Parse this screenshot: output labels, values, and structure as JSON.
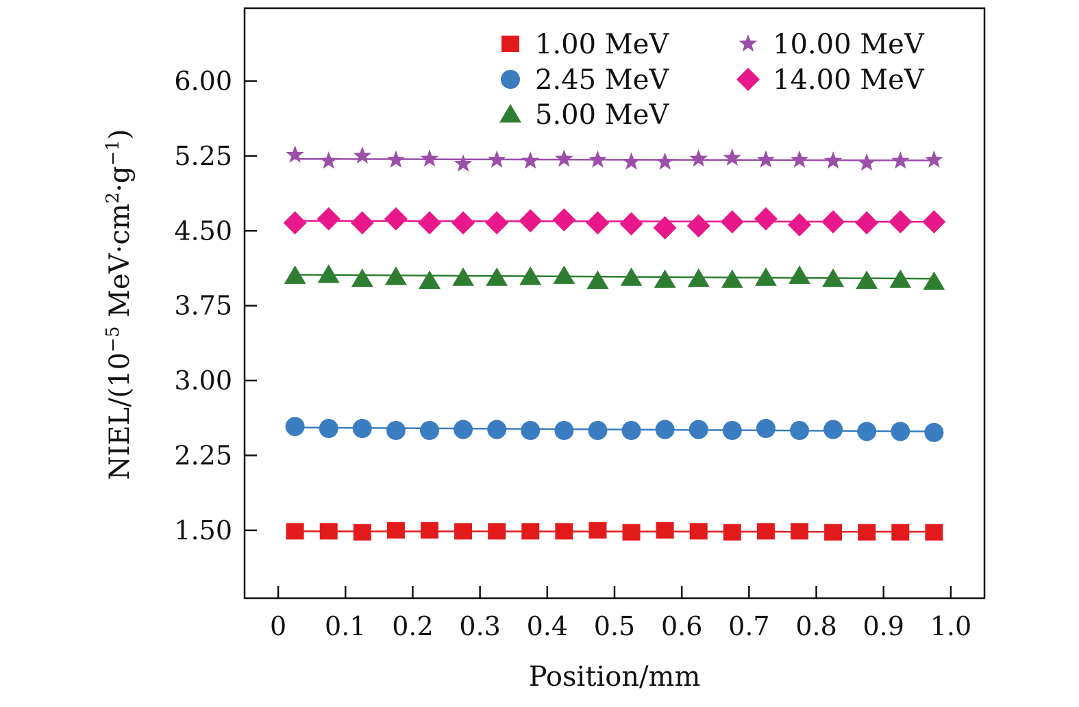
{
  "chart_data": {
    "type": "line",
    "xlabel": "Position/mm",
    "ylabel": {
      "base": "NIEL/(10",
      "exp1": "−5",
      "mid": " MeV·cm",
      "exp2": "2",
      "mid2": "·g",
      "exp3": "−1",
      "end": ")"
    },
    "xlim": [
      -0.05,
      1.05
    ],
    "ylim": [
      0.82,
      6.73
    ],
    "x_ticks": [
      0,
      0.1,
      0.2,
      0.3,
      0.4,
      0.5,
      0.6,
      0.7,
      0.8,
      0.9,
      1.0
    ],
    "x_tick_labels": [
      "0",
      "0.1",
      "0.2",
      "0.3",
      "0.4",
      "0.5",
      "0.6",
      "0.7",
      "0.8",
      "0.9",
      "1.0"
    ],
    "y_ticks": [
      1.5,
      2.25,
      3.0,
      3.75,
      4.5,
      5.25,
      6.0
    ],
    "y_tick_labels": [
      "1.50",
      "2.25",
      "3.00",
      "3.75",
      "4.50",
      "5.25",
      "6.00"
    ],
    "legend_position": "top-right",
    "x": [
      0.025,
      0.075,
      0.125,
      0.175,
      0.225,
      0.275,
      0.325,
      0.375,
      0.425,
      0.475,
      0.525,
      0.575,
      0.625,
      0.675,
      0.725,
      0.775,
      0.825,
      0.875,
      0.925,
      0.975
    ],
    "series": [
      {
        "name": "1.00 MeV",
        "marker": "square",
        "color": "#e31a1c",
        "values": [
          1.49,
          1.49,
          1.48,
          1.5,
          1.5,
          1.49,
          1.49,
          1.49,
          1.49,
          1.5,
          1.48,
          1.5,
          1.49,
          1.48,
          1.49,
          1.49,
          1.48,
          1.48,
          1.48,
          1.48
        ],
        "fit": [
          1.49,
          1.485
        ]
      },
      {
        "name": "2.45 MeV",
        "marker": "circle",
        "color": "#3a7dc0",
        "values": [
          2.54,
          2.52,
          2.52,
          2.5,
          2.5,
          2.51,
          2.51,
          2.5,
          2.5,
          2.5,
          2.5,
          2.51,
          2.51,
          2.5,
          2.52,
          2.5,
          2.51,
          2.49,
          2.49,
          2.48
        ],
        "fit": [
          2.53,
          2.49
        ]
      },
      {
        "name": "5.00 MeV",
        "marker": "triangle",
        "color": "#2e7d32",
        "values": [
          4.05,
          4.06,
          4.02,
          4.04,
          4.0,
          4.03,
          4.03,
          4.04,
          4.05,
          4.0,
          4.03,
          4.01,
          4.02,
          4.01,
          4.03,
          4.05,
          4.02,
          4.0,
          4.01,
          3.99
        ],
        "fit": [
          4.06,
          4.02
        ]
      },
      {
        "name": "10.00 MeV",
        "marker": "star",
        "color": "#9b4fa9",
        "values": [
          5.26,
          5.2,
          5.25,
          5.21,
          5.22,
          5.17,
          5.21,
          5.2,
          5.22,
          5.21,
          5.19,
          5.19,
          5.22,
          5.23,
          5.21,
          5.21,
          5.2,
          5.18,
          5.2,
          5.21
        ],
        "fit": [
          5.22,
          5.205
        ]
      },
      {
        "name": "14.00 MeV",
        "marker": "diamond",
        "color": "#e8188a",
        "values": [
          4.58,
          4.62,
          4.58,
          4.62,
          4.58,
          4.58,
          4.58,
          4.6,
          4.61,
          4.58,
          4.57,
          4.53,
          4.55,
          4.59,
          4.62,
          4.56,
          4.59,
          4.58,
          4.59,
          4.59
        ],
        "fit": [
          4.6,
          4.59
        ]
      }
    ]
  }
}
